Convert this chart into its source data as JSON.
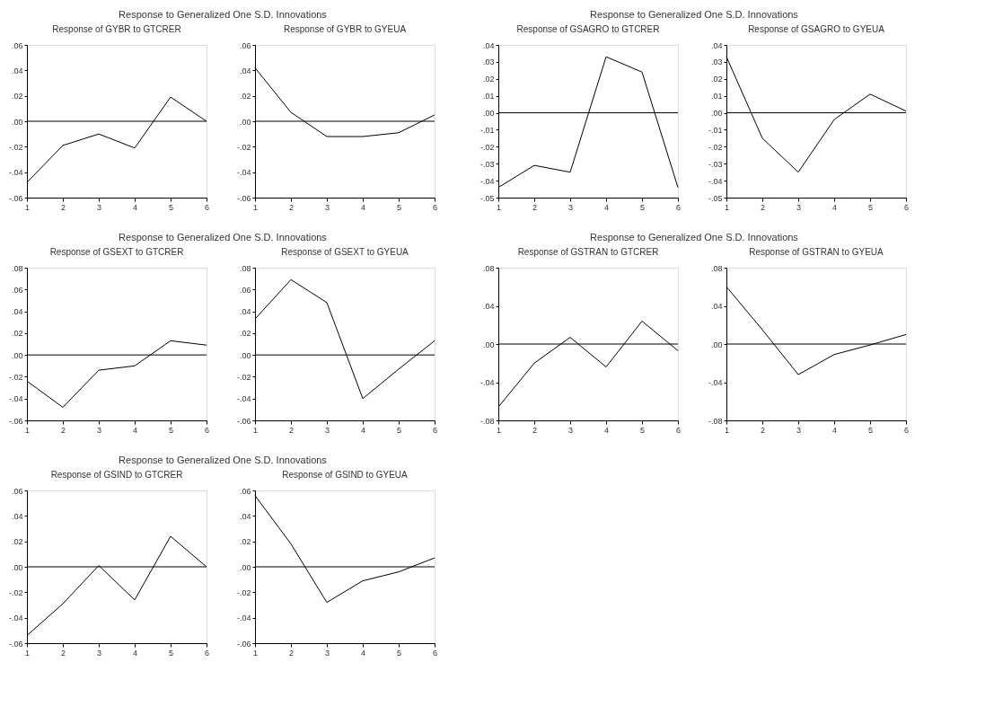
{
  "chart_data": [
    {
      "type": "line",
      "annotations": [
        "Response to Generalized One S.D. Innovations"
      ],
      "title": "Response of GYBR to GTCRER",
      "x": [
        1,
        2,
        3,
        4,
        5,
        6
      ],
      "series": [
        {
          "color": "#000000",
          "values": [
            -0.048,
            -0.019,
            -0.01,
            -0.021,
            0.019,
            0.0
          ]
        }
      ],
      "xlim": [
        1,
        6
      ],
      "xticks": [
        1,
        2,
        3,
        4,
        5,
        6
      ],
      "ylim": [
        -0.06,
        0.06
      ],
      "yticks": [
        {
          "value": -0.06,
          "label": "-.06"
        },
        {
          "value": -0.04,
          "label": "-.04"
        },
        {
          "value": -0.02,
          "label": "-.02"
        },
        {
          "value": 0,
          "label": ".00"
        },
        {
          "value": 0.02,
          "label": ".02"
        },
        {
          "value": 0.04,
          "label": ".04"
        },
        {
          "value": 0.06,
          "label": ".06"
        }
      ],
      "ref_lines": [
        {
          "axis": "y",
          "value": 0,
          "color": "#000000"
        }
      ]
    },
    {
      "type": "line",
      "title": "Response of GYBR to GYEUA",
      "x": [
        1,
        2,
        3,
        4,
        5,
        6
      ],
      "series": [
        {
          "color": "#000000",
          "values": [
            0.042,
            0.007,
            -0.012,
            -0.012,
            -0.009,
            0.005
          ]
        }
      ],
      "xlim": [
        1,
        6
      ],
      "xticks": [
        1,
        2,
        3,
        4,
        5,
        6
      ],
      "ylim": [
        -0.06,
        0.06
      ],
      "yticks": [
        {
          "value": -0.06,
          "label": "-.06"
        },
        {
          "value": -0.04,
          "label": "-.04"
        },
        {
          "value": -0.02,
          "label": "-.02"
        },
        {
          "value": 0,
          "label": ".00"
        },
        {
          "value": 0.02,
          "label": ".02"
        },
        {
          "value": 0.04,
          "label": ".04"
        },
        {
          "value": 0.06,
          "label": ".06"
        }
      ],
      "ref_lines": [
        {
          "axis": "y",
          "value": 0,
          "color": "#000000"
        }
      ]
    },
    {
      "type": "line",
      "annotations": [
        "Response to Generalized One S.D. Innovations"
      ],
      "title": "Response of GSAGRO to GTCRER",
      "x": [
        1,
        2,
        3,
        4,
        5,
        6
      ],
      "series": [
        {
          "color": "#000000",
          "values": [
            -0.044,
            -0.031,
            -0.035,
            0.033,
            0.024,
            -0.044
          ]
        }
      ],
      "xlim": [
        1,
        6
      ],
      "xticks": [
        1,
        2,
        3,
        4,
        5,
        6
      ],
      "ylim": [
        -0.05,
        0.04
      ],
      "yticks": [
        {
          "value": -0.05,
          "label": "-.05"
        },
        {
          "value": -0.04,
          "label": "-.04"
        },
        {
          "value": -0.03,
          "label": "-.03"
        },
        {
          "value": -0.02,
          "label": "-.02"
        },
        {
          "value": -0.01,
          "label": "-.01"
        },
        {
          "value": 0,
          "label": ".00"
        },
        {
          "value": 0.01,
          "label": ".01"
        },
        {
          "value": 0.02,
          "label": ".02"
        },
        {
          "value": 0.03,
          "label": ".03"
        },
        {
          "value": 0.04,
          "label": ".04"
        }
      ],
      "ref_lines": [
        {
          "axis": "y",
          "value": 0,
          "color": "#000000"
        }
      ]
    },
    {
      "type": "line",
      "title": "Response of GSAGRO to GYEUA",
      "x": [
        1,
        2,
        3,
        4,
        5,
        6
      ],
      "series": [
        {
          "color": "#000000",
          "values": [
            0.033,
            -0.015,
            -0.035,
            -0.004,
            0.011,
            0.001
          ]
        }
      ],
      "xlim": [
        1,
        6
      ],
      "xticks": [
        1,
        2,
        3,
        4,
        5,
        6
      ],
      "ylim": [
        -0.05,
        0.04
      ],
      "yticks": [
        {
          "value": -0.05,
          "label": "-.05"
        },
        {
          "value": -0.04,
          "label": "-.04"
        },
        {
          "value": -0.03,
          "label": "-.03"
        },
        {
          "value": -0.02,
          "label": "-.02"
        },
        {
          "value": -0.01,
          "label": "-.01"
        },
        {
          "value": 0,
          "label": ".00"
        },
        {
          "value": 0.01,
          "label": ".01"
        },
        {
          "value": 0.02,
          "label": ".02"
        },
        {
          "value": 0.03,
          "label": ".03"
        },
        {
          "value": 0.04,
          "label": ".04"
        }
      ],
      "ref_lines": [
        {
          "axis": "y",
          "value": 0,
          "color": "#000000"
        }
      ]
    },
    {
      "type": "line",
      "annotations": [
        "Response to Generalized One S.D. Innovations"
      ],
      "title": "Response of GSEXT to GTCRER",
      "x": [
        1,
        2,
        3,
        4,
        5,
        6
      ],
      "series": [
        {
          "color": "#000000",
          "values": [
            -0.024,
            -0.048,
            -0.014,
            -0.01,
            0.013,
            0.009
          ]
        }
      ],
      "xlim": [
        1,
        6
      ],
      "xticks": [
        1,
        2,
        3,
        4,
        5,
        6
      ],
      "ylim": [
        -0.06,
        0.08
      ],
      "yticks": [
        {
          "value": -0.06,
          "label": "-.06"
        },
        {
          "value": -0.04,
          "label": "-.04"
        },
        {
          "value": -0.02,
          "label": "-.02"
        },
        {
          "value": 0,
          "label": ".00"
        },
        {
          "value": 0.02,
          "label": ".02"
        },
        {
          "value": 0.04,
          "label": ".04"
        },
        {
          "value": 0.06,
          "label": ".06"
        },
        {
          "value": 0.08,
          "label": ".08"
        }
      ],
      "ref_lines": [
        {
          "axis": "y",
          "value": 0,
          "color": "#000000"
        }
      ]
    },
    {
      "type": "line",
      "title": "Response of GSEXT to GYEUA",
      "x": [
        1,
        2,
        3,
        4,
        5,
        6
      ],
      "series": [
        {
          "color": "#000000",
          "values": [
            0.033,
            0.069,
            0.048,
            -0.04,
            -0.013,
            0.013
          ]
        }
      ],
      "xlim": [
        1,
        6
      ],
      "xticks": [
        1,
        2,
        3,
        4,
        5,
        6
      ],
      "ylim": [
        -0.06,
        0.08
      ],
      "yticks": [
        {
          "value": -0.06,
          "label": "-.06"
        },
        {
          "value": -0.04,
          "label": "-.04"
        },
        {
          "value": -0.02,
          "label": "-.02"
        },
        {
          "value": 0,
          "label": ".00"
        },
        {
          "value": 0.02,
          "label": ".02"
        },
        {
          "value": 0.04,
          "label": ".04"
        },
        {
          "value": 0.06,
          "label": ".06"
        },
        {
          "value": 0.08,
          "label": ".08"
        }
      ],
      "ref_lines": [
        {
          "axis": "y",
          "value": 0,
          "color": "#000000"
        }
      ]
    },
    {
      "type": "line",
      "annotations": [
        "Response to Generalized One S.D. Innovations"
      ],
      "title": "Response of GSTRAN to GTCRER",
      "x": [
        1,
        2,
        3,
        4,
        5,
        6
      ],
      "series": [
        {
          "color": "#000000",
          "values": [
            -0.066,
            -0.02,
            0.007,
            -0.024,
            0.024,
            -0.007
          ]
        }
      ],
      "xlim": [
        1,
        6
      ],
      "xticks": [
        1,
        2,
        3,
        4,
        5,
        6
      ],
      "ylim": [
        -0.08,
        0.08
      ],
      "yticks": [
        {
          "value": -0.08,
          "label": "-.08"
        },
        {
          "value": -0.04,
          "label": "-.04"
        },
        {
          "value": 0,
          "label": ".00"
        },
        {
          "value": 0.04,
          "label": ".04"
        },
        {
          "value": 0.08,
          "label": ".08"
        }
      ],
      "ref_lines": [
        {
          "axis": "y",
          "value": 0,
          "color": "#000000"
        }
      ]
    },
    {
      "type": "line",
      "title": "Response of GSTRAN to GYEUA",
      "x": [
        1,
        2,
        3,
        4,
        5,
        6
      ],
      "series": [
        {
          "color": "#000000",
          "values": [
            0.06,
            0.015,
            -0.032,
            -0.011,
            -0.001,
            0.01
          ]
        }
      ],
      "xlim": [
        1,
        6
      ],
      "xticks": [
        1,
        2,
        3,
        4,
        5,
        6
      ],
      "ylim": [
        -0.08,
        0.08
      ],
      "yticks": [
        {
          "value": -0.08,
          "label": "-.08"
        },
        {
          "value": -0.04,
          "label": "-.04"
        },
        {
          "value": 0,
          "label": ".00"
        },
        {
          "value": 0.04,
          "label": ".04"
        },
        {
          "value": 0.08,
          "label": ".08"
        }
      ],
      "ref_lines": [
        {
          "axis": "y",
          "value": 0,
          "color": "#000000"
        }
      ]
    },
    {
      "type": "line",
      "annotations": [
        "Response to Generalized One S.D. Innovations"
      ],
      "title": "Response of GSIND to GTCRER",
      "x": [
        1,
        2,
        3,
        4,
        5,
        6
      ],
      "series": [
        {
          "color": "#000000",
          "values": [
            -0.054,
            -0.029,
            0.001,
            -0.026,
            0.024,
            0.0
          ]
        }
      ],
      "xlim": [
        1,
        6
      ],
      "xticks": [
        1,
        2,
        3,
        4,
        5,
        6
      ],
      "ylim": [
        -0.06,
        0.06
      ],
      "yticks": [
        {
          "value": -0.06,
          "label": "-.06"
        },
        {
          "value": -0.04,
          "label": "-.04"
        },
        {
          "value": -0.02,
          "label": "-.02"
        },
        {
          "value": 0,
          "label": ".00"
        },
        {
          "value": 0.02,
          "label": ".02"
        },
        {
          "value": 0.04,
          "label": ".04"
        },
        {
          "value": 0.06,
          "label": ".06"
        }
      ],
      "ref_lines": [
        {
          "axis": "y",
          "value": 0,
          "color": "#000000"
        }
      ]
    },
    {
      "type": "line",
      "title": "Response of GSIND to GYEUA",
      "x": [
        1,
        2,
        3,
        4,
        5,
        6
      ],
      "series": [
        {
          "color": "#000000",
          "values": [
            0.056,
            0.018,
            -0.028,
            -0.011,
            -0.004,
            0.007
          ]
        }
      ],
      "xlim": [
        1,
        6
      ],
      "xticks": [
        1,
        2,
        3,
        4,
        5,
        6
      ],
      "ylim": [
        -0.06,
        0.06
      ],
      "yticks": [
        {
          "value": -0.06,
          "label": "-.06"
        },
        {
          "value": -0.04,
          "label": "-.04"
        },
        {
          "value": -0.02,
          "label": "-.02"
        },
        {
          "value": 0,
          "label": ".00"
        },
        {
          "value": 0.02,
          "label": ".02"
        },
        {
          "value": 0.04,
          "label": ".04"
        },
        {
          "value": 0.06,
          "label": ".06"
        }
      ],
      "ref_lines": [
        {
          "axis": "y",
          "value": 0,
          "color": "#000000"
        }
      ]
    }
  ]
}
